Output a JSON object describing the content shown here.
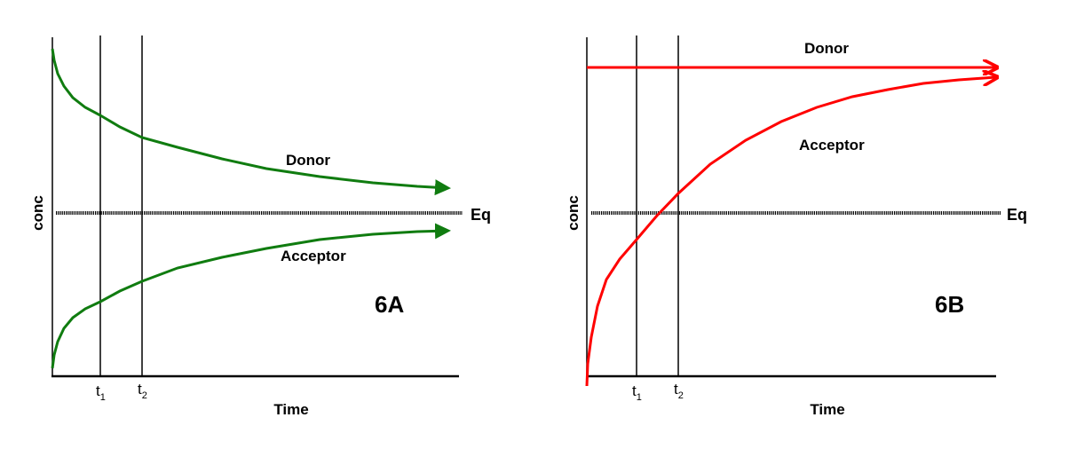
{
  "panels": [
    {
      "id": "6A",
      "label": "6A",
      "ylabel": "conc",
      "xlabel": "Time",
      "eq_label": "Eq",
      "t1": "t",
      "t1_sub": "1",
      "t2": "t",
      "t2_sub": "2",
      "donor_label": "Donor",
      "acceptor_label": "Acceptor",
      "curve_color": "#107c10"
    },
    {
      "id": "6B",
      "label": "6B",
      "ylabel": "conc",
      "xlabel": "Time",
      "eq_label": "Eq",
      "t1": "t",
      "t1_sub": "1",
      "t2": "t",
      "t2_sub": "2",
      "donor_label": "Donor",
      "acceptor_label": "Acceptor",
      "curve_color": "#ff0000"
    }
  ]
}
